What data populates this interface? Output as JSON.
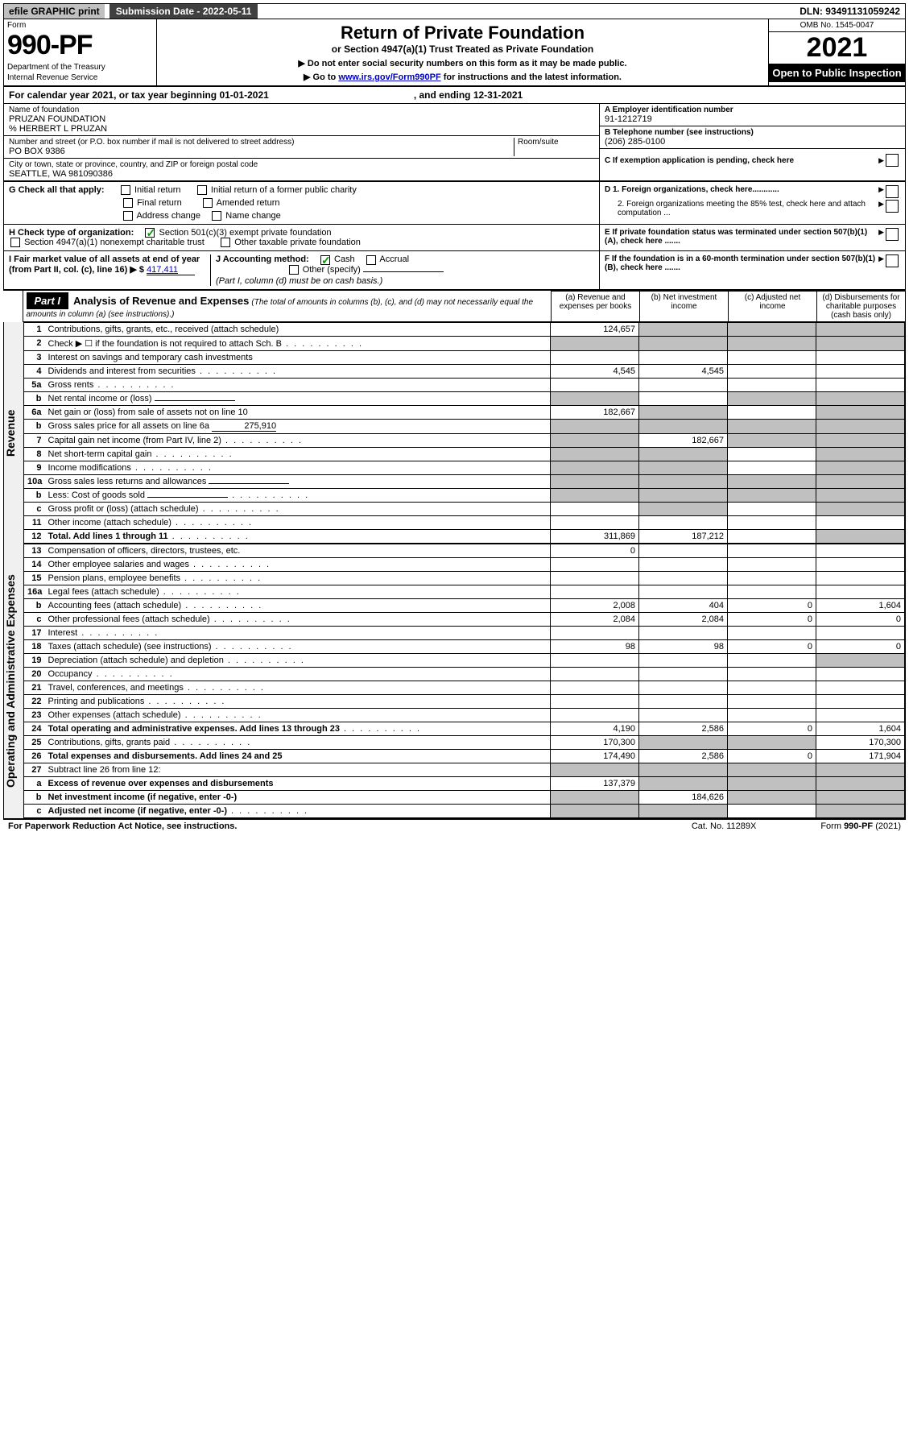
{
  "topbar": {
    "efile": "efile GRAPHIC print",
    "submission_label": "Submission Date - 2022-05-11",
    "dln": "DLN: 93491131059242"
  },
  "formhead": {
    "form_label": "Form",
    "form_number": "990-PF",
    "dept": "Department of the Treasury",
    "irs": "Internal Revenue Service",
    "title": "Return of Private Foundation",
    "subtitle": "or Section 4947(a)(1) Trust Treated as Private Foundation",
    "note1": "▶ Do not enter social security numbers on this form as it may be made public.",
    "note2_pre": "▶ Go to ",
    "note2_link": "www.irs.gov/Form990PF",
    "note2_post": " for instructions and the latest information.",
    "omb": "OMB No. 1545-0047",
    "year": "2021",
    "open": "Open to Public Inspection"
  },
  "calendar": {
    "text_left": "For calendar year 2021, or tax year beginning 01-01-2021",
    "text_right": ", and ending 12-31-2021"
  },
  "id": {
    "name_label": "Name of foundation",
    "name": "PRUZAN FOUNDATION",
    "care_of": "% HERBERT L PRUZAN",
    "addr_label": "Number and street (or P.O. box number if mail is not delivered to street address)",
    "addr": "PO BOX 9386",
    "room_label": "Room/suite",
    "city_label": "City or town, state or province, country, and ZIP or foreign postal code",
    "city": "SEATTLE, WA  981090386",
    "a_label": "A Employer identification number",
    "a_val": "91-1212719",
    "b_label": "B Telephone number (see instructions)",
    "b_val": "(206) 285-0100",
    "c_label": "C If exemption application is pending, check here",
    "d1_label": "D 1. Foreign organizations, check here............",
    "d2_label": "2. Foreign organizations meeting the 85% test, check here and attach computation ...",
    "e_label": "E  If private foundation status was terminated under section 507(b)(1)(A), check here .......",
    "f_label": "F  If the foundation is in a 60-month termination under section 507(b)(1)(B), check here .......",
    "g_label": "G Check all that apply:",
    "g_opts": [
      "Initial return",
      "Initial return of a former public charity",
      "Final return",
      "Amended return",
      "Address change",
      "Name change"
    ],
    "h_label": "H Check type of organization:",
    "h_opts": [
      "Section 501(c)(3) exempt private foundation",
      "Section 4947(a)(1) nonexempt charitable trust",
      "Other taxable private foundation"
    ],
    "i_label": "I Fair market value of all assets at end of year (from Part II, col. (c), line 16) ▶ $",
    "i_val": "417,411",
    "j_label": "J Accounting method:",
    "j_opts": [
      "Cash",
      "Accrual",
      "Other (specify)"
    ],
    "j_note": "(Part I, column (d) must be on cash basis.)"
  },
  "part1": {
    "part_label": "Part I",
    "title": "Analysis of Revenue and Expenses",
    "title_note": "(The total of amounts in columns (b), (c), and (d) may not necessarily equal the amounts in column (a) (see instructions).)",
    "col_a": "(a) Revenue and expenses per books",
    "col_b": "(b) Net investment income",
    "col_c": "(c) Adjusted net income",
    "col_d": "(d) Disbursements for charitable purposes (cash basis only)",
    "side_rev": "Revenue",
    "side_exp": "Operating and Administrative Expenses"
  },
  "rows": [
    {
      "n": "1",
      "d": "Contributions, gifts, grants, etc., received (attach schedule)",
      "a": "124,657",
      "grey_b": true,
      "grey_c": true,
      "grey_d": true
    },
    {
      "n": "2",
      "d": "Check ▶ ☐ if the foundation is not required to attach Sch. B",
      "dots": true,
      "grey_a": true,
      "grey_b": true,
      "grey_c": true,
      "grey_d": true
    },
    {
      "n": "3",
      "d": "Interest on savings and temporary cash investments"
    },
    {
      "n": "4",
      "d": "Dividends and interest from securities",
      "dots": true,
      "a": "4,545",
      "b": "4,545"
    },
    {
      "n": "5a",
      "d": "Gross rents",
      "dots": true
    },
    {
      "n": "b",
      "d": "Net rental income or (loss)",
      "inline_box": true,
      "grey_a": true,
      "grey_c": true,
      "grey_d": true
    },
    {
      "n": "6a",
      "d": "Net gain or (loss) from sale of assets not on line 10",
      "a": "182,667",
      "grey_b": true,
      "grey_d": true
    },
    {
      "n": "b",
      "d": "Gross sales price for all assets on line 6a",
      "inline_val": "275,910",
      "grey_a": true,
      "grey_b": true,
      "grey_c": true,
      "grey_d": true
    },
    {
      "n": "7",
      "d": "Capital gain net income (from Part IV, line 2)",
      "dots": true,
      "grey_a": true,
      "b": "182,667",
      "grey_c": true,
      "grey_d": true
    },
    {
      "n": "8",
      "d": "Net short-term capital gain",
      "dots": true,
      "grey_a": true,
      "grey_b": true,
      "grey_d": true
    },
    {
      "n": "9",
      "d": "Income modifications",
      "dots": true,
      "grey_a": true,
      "grey_b": true,
      "grey_d": true
    },
    {
      "n": "10a",
      "d": "Gross sales less returns and allowances",
      "inline_box": true,
      "grey_a": true,
      "grey_b": true,
      "grey_c": true,
      "grey_d": true
    },
    {
      "n": "b",
      "d": "Less: Cost of goods sold",
      "dots": true,
      "inline_box": true,
      "grey_a": true,
      "grey_b": true,
      "grey_c": true,
      "grey_d": true
    },
    {
      "n": "c",
      "d": "Gross profit or (loss) (attach schedule)",
      "dots": true,
      "grey_b": true,
      "grey_d": true
    },
    {
      "n": "11",
      "d": "Other income (attach schedule)",
      "dots": true
    },
    {
      "n": "12",
      "d": "Total. Add lines 1 through 11",
      "bold": true,
      "dots": true,
      "a": "311,869",
      "b": "187,212",
      "grey_d": true
    }
  ],
  "exp_rows": [
    {
      "n": "13",
      "d": "Compensation of officers, directors, trustees, etc.",
      "a": "0"
    },
    {
      "n": "14",
      "d": "Other employee salaries and wages",
      "dots": true
    },
    {
      "n": "15",
      "d": "Pension plans, employee benefits",
      "dots": true
    },
    {
      "n": "16a",
      "d": "Legal fees (attach schedule)",
      "dots": true
    },
    {
      "n": "b",
      "d": "Accounting fees (attach schedule)",
      "dots": true,
      "a": "2,008",
      "b": "404",
      "c": "0",
      "dd": "1,604"
    },
    {
      "n": "c",
      "d": "Other professional fees (attach schedule)",
      "dots": true,
      "a": "2,084",
      "b": "2,084",
      "c": "0",
      "dd": "0"
    },
    {
      "n": "17",
      "d": "Interest",
      "dots": true
    },
    {
      "n": "18",
      "d": "Taxes (attach schedule) (see instructions)",
      "dots": true,
      "a": "98",
      "b": "98",
      "c": "0",
      "dd": "0"
    },
    {
      "n": "19",
      "d": "Depreciation (attach schedule) and depletion",
      "dots": true,
      "grey_d": true
    },
    {
      "n": "20",
      "d": "Occupancy",
      "dots": true
    },
    {
      "n": "21",
      "d": "Travel, conferences, and meetings",
      "dots": true
    },
    {
      "n": "22",
      "d": "Printing and publications",
      "dots": true
    },
    {
      "n": "23",
      "d": "Other expenses (attach schedule)",
      "dots": true
    },
    {
      "n": "24",
      "d": "Total operating and administrative expenses. Add lines 13 through 23",
      "bold": true,
      "dots": true,
      "a": "4,190",
      "b": "2,586",
      "c": "0",
      "dd": "1,604"
    },
    {
      "n": "25",
      "d": "Contributions, gifts, grants paid",
      "dots": true,
      "a": "170,300",
      "grey_b": true,
      "grey_c": true,
      "dd": "170,300"
    },
    {
      "n": "26",
      "d": "Total expenses and disbursements. Add lines 24 and 25",
      "bold": true,
      "a": "174,490",
      "b": "2,586",
      "c": "0",
      "dd": "171,904"
    },
    {
      "n": "27",
      "d": "Subtract line 26 from line 12:",
      "grey_a": true,
      "grey_b": true,
      "grey_c": true,
      "grey_d": true
    },
    {
      "n": "a",
      "d": "Excess of revenue over expenses and disbursements",
      "bold": true,
      "a": "137,379",
      "grey_b": true,
      "grey_c": true,
      "grey_d": true
    },
    {
      "n": "b",
      "d": "Net investment income (if negative, enter -0-)",
      "bold": true,
      "grey_a": true,
      "b": "184,626",
      "grey_c": true,
      "grey_d": true
    },
    {
      "n": "c",
      "d": "Adjusted net income (if negative, enter -0-)",
      "bold": true,
      "dots": true,
      "grey_a": true,
      "grey_b": true,
      "grey_d": true
    }
  ],
  "footer": {
    "left": "For Paperwork Reduction Act Notice, see instructions.",
    "mid": "Cat. No. 11289X",
    "right": "Form 990-PF (2021)"
  }
}
